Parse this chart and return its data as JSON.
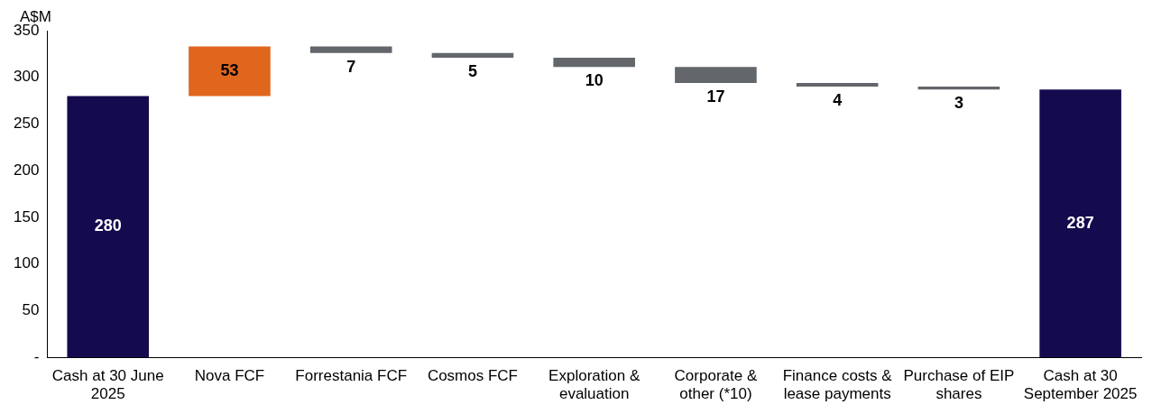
{
  "chart_data": {
    "type": "bar",
    "ylabel": "A$M",
    "categories": [
      "Cash at 30 June 2025",
      "Nova FCF",
      "Forrestania FCF",
      "Cosmos FCF",
      "Exploration & evaluation",
      "Corporate & other (*10)",
      "Finance costs & lease payments",
      "Purchase of EIP shares",
      "Cash at 30 September 2025"
    ],
    "values": [
      280,
      53,
      -7,
      -5,
      -10,
      -17,
      -4,
      -3,
      287
    ],
    "base": [
      0,
      280,
      333,
      326,
      321,
      311,
      294,
      290,
      0
    ],
    "value_labels": [
      "280",
      "53",
      "7",
      "5",
      "10",
      "17",
      "4",
      "3",
      "287"
    ],
    "colors": [
      "#140a4e",
      "#e0661e",
      "#63666a",
      "#63666a",
      "#63666a",
      "#63666a",
      "#63666a",
      "#63666a",
      "#140a4e"
    ],
    "ylim": [
      0,
      350
    ],
    "yticks": [
      {
        "value": 0,
        "label": "-"
      },
      50,
      100,
      150,
      200,
      250,
      300,
      350
    ],
    "grid": false,
    "legend": false
  }
}
